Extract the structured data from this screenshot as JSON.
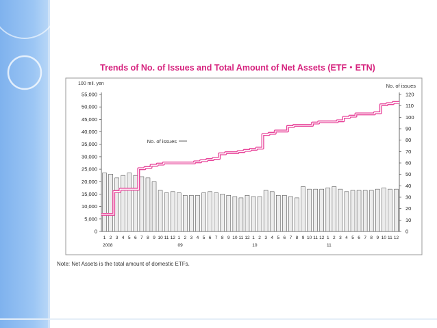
{
  "slide": {
    "colors": {
      "band": "#8fbcf0",
      "title": "#d6237e",
      "line": "#e8459a",
      "bar_fill": "#ececec"
    }
  },
  "chart_data": {
    "type": "bar+line",
    "title": "Trends of No. of Issues and Total Amount of Net Assets (ETF・ETN)",
    "left_axis_unit": "100 mil. yen",
    "right_axis_title": "No. of issues",
    "left_ticks": [
      "55,000",
      "50,000",
      "45,000",
      "40,000",
      "35,000",
      "30,000",
      "25,000",
      "20,000",
      "15,000",
      "10,000",
      "5,000",
      "0"
    ],
    "right_ticks": [
      "120",
      "110",
      "100",
      "90",
      "80",
      "70",
      "60",
      "50",
      "40",
      "30",
      "20",
      "10",
      "0"
    ],
    "ylim_left": [
      0,
      55000
    ],
    "ylim_right": [
      0,
      120
    ],
    "month_labels": [
      "1",
      "2",
      "3",
      "4",
      "5",
      "6",
      "7",
      "8",
      "9",
      "10",
      "11",
      "12",
      "1",
      "2",
      "3",
      "4",
      "5",
      "6",
      "7",
      "8",
      "9",
      "10",
      "11",
      "12",
      "1",
      "2",
      "3",
      "4",
      "5",
      "6",
      "7",
      "8",
      "9",
      "10",
      "11",
      "12",
      "1",
      "2",
      "3",
      "4",
      "5",
      "6",
      "7",
      "8",
      "9",
      "10",
      "11",
      "12"
    ],
    "year_labels": [
      "2008",
      "09",
      "10",
      "11"
    ],
    "annotation": "No. of issues",
    "series": [
      {
        "name": "Net Assets",
        "type": "bar",
        "values": [
          23500,
          23000,
          21500,
          22500,
          23500,
          22500,
          22000,
          21500,
          20000,
          16500,
          15500,
          16000,
          15500,
          14500,
          14500,
          14500,
          15500,
          16000,
          15500,
          15000,
          14500,
          14000,
          13500,
          14500,
          14000,
          14000,
          16500,
          16000,
          14500,
          14500,
          14000,
          13500,
          18000,
          17000,
          17000,
          17000,
          17500,
          18000,
          17000,
          16000,
          16500,
          16500,
          16500,
          16500,
          17000,
          17500,
          17000,
          17000
        ]
      },
      {
        "name": "No. of issues",
        "type": "line",
        "values": [
          15,
          15,
          35,
          37,
          37,
          37,
          55,
          56,
          58,
          59,
          60,
          60,
          60,
          60,
          60,
          61,
          62,
          63,
          64,
          68,
          69,
          69,
          70,
          71,
          72,
          73,
          85,
          86,
          88,
          88,
          92,
          93,
          93,
          93,
          95,
          96,
          96,
          96,
          97,
          100,
          101,
          103,
          103,
          103,
          104,
          111,
          112,
          113
        ]
      }
    ]
  },
  "note": "Note: Net Assets is the total amount of domestic ETFs."
}
